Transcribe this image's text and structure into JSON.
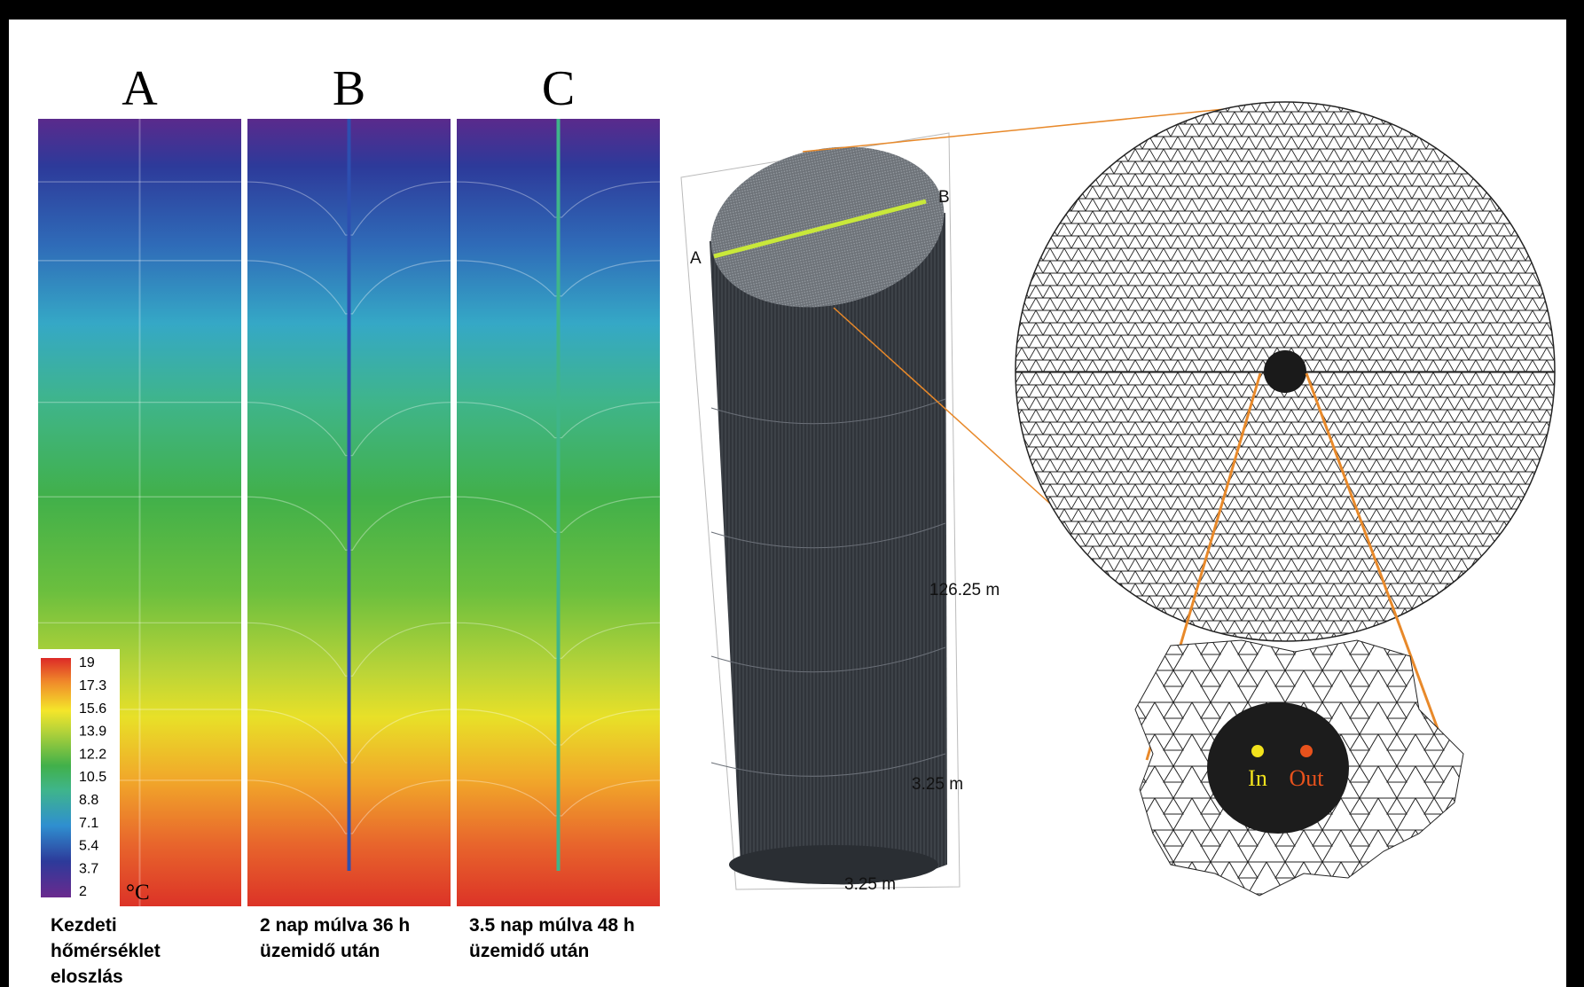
{
  "panels": [
    {
      "letter": "A",
      "caption": [
        "Kezdeti",
        "hőmérséklet",
        "eloszlás"
      ]
    },
    {
      "letter": "B",
      "caption": [
        "2 nap múlva 36 h",
        "üzemidő után"
      ]
    },
    {
      "letter": "C",
      "caption": [
        "3.5 nap múlva 48 h",
        "üzemidő után"
      ]
    }
  ],
  "colorbar": {
    "ticks": [
      19,
      17.3,
      15.6,
      13.9,
      12.2,
      10.5,
      8.8,
      7.1,
      5.4,
      3.7,
      2
    ],
    "unit": "°C"
  },
  "cylinder": {
    "end_a": "A",
    "end_b": "B",
    "height": "126.25 m",
    "width": "3.25 m",
    "depth": "3.25 m"
  },
  "zoom": {
    "inlet": "In",
    "outlet": "Out"
  }
}
